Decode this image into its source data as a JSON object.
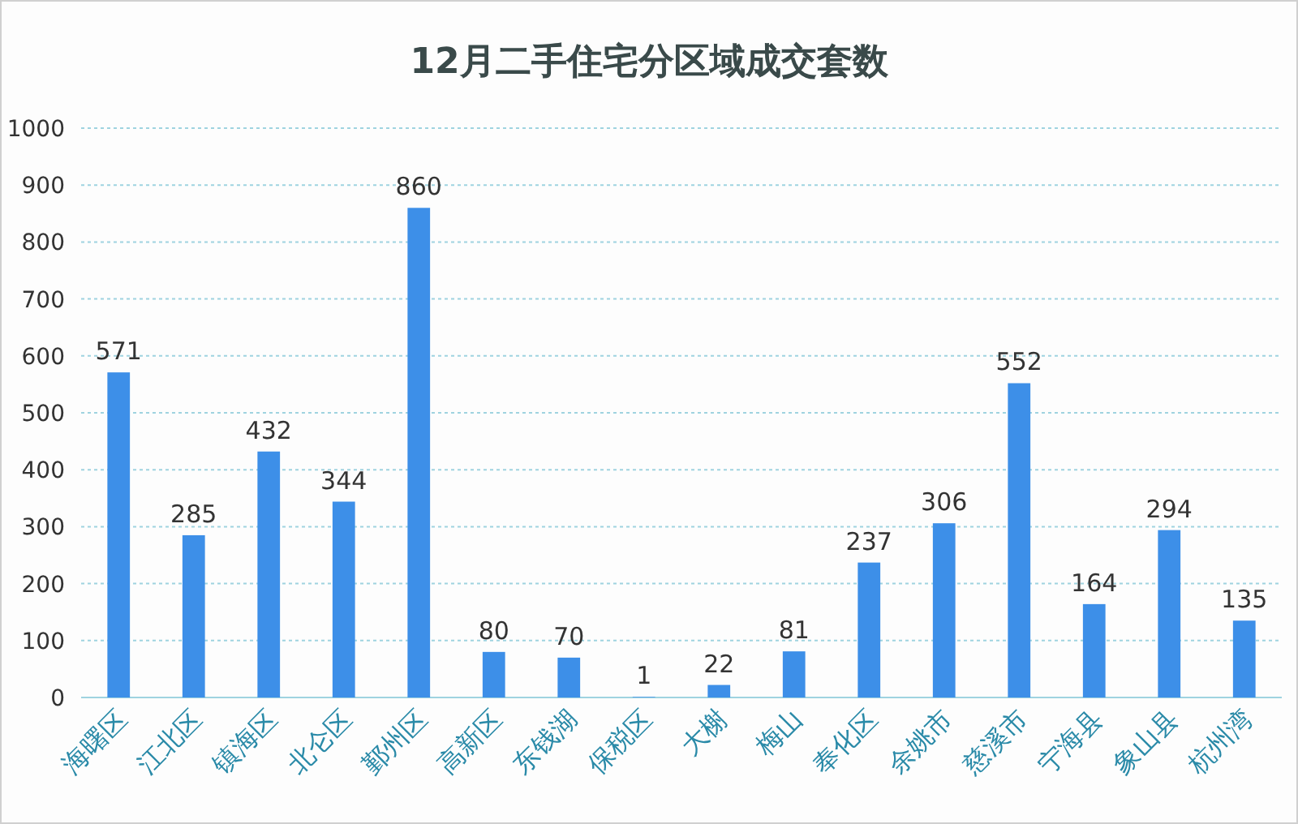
{
  "chart_data": {
    "type": "bar",
    "title": "12月二手住宅分区域成交套数",
    "categories": [
      "海曙区",
      "江北区",
      "镇海区",
      "北仑区",
      "鄞州区",
      "高新区",
      "东钱湖",
      "保税区",
      "大榭",
      "梅山",
      "奉化区",
      "余姚市",
      "慈溪市",
      "宁海县",
      "象山县",
      "杭州湾"
    ],
    "values": [
      571,
      285,
      432,
      344,
      860,
      80,
      70,
      1,
      22,
      81,
      237,
      306,
      552,
      164,
      294,
      135
    ],
    "color": "#3d8fe8",
    "ylim": [
      0,
      1000
    ],
    "yticks": [
      0,
      100,
      200,
      300,
      400,
      500,
      600,
      700,
      800,
      900,
      1000
    ],
    "grid": "y",
    "data_labels": true
  }
}
